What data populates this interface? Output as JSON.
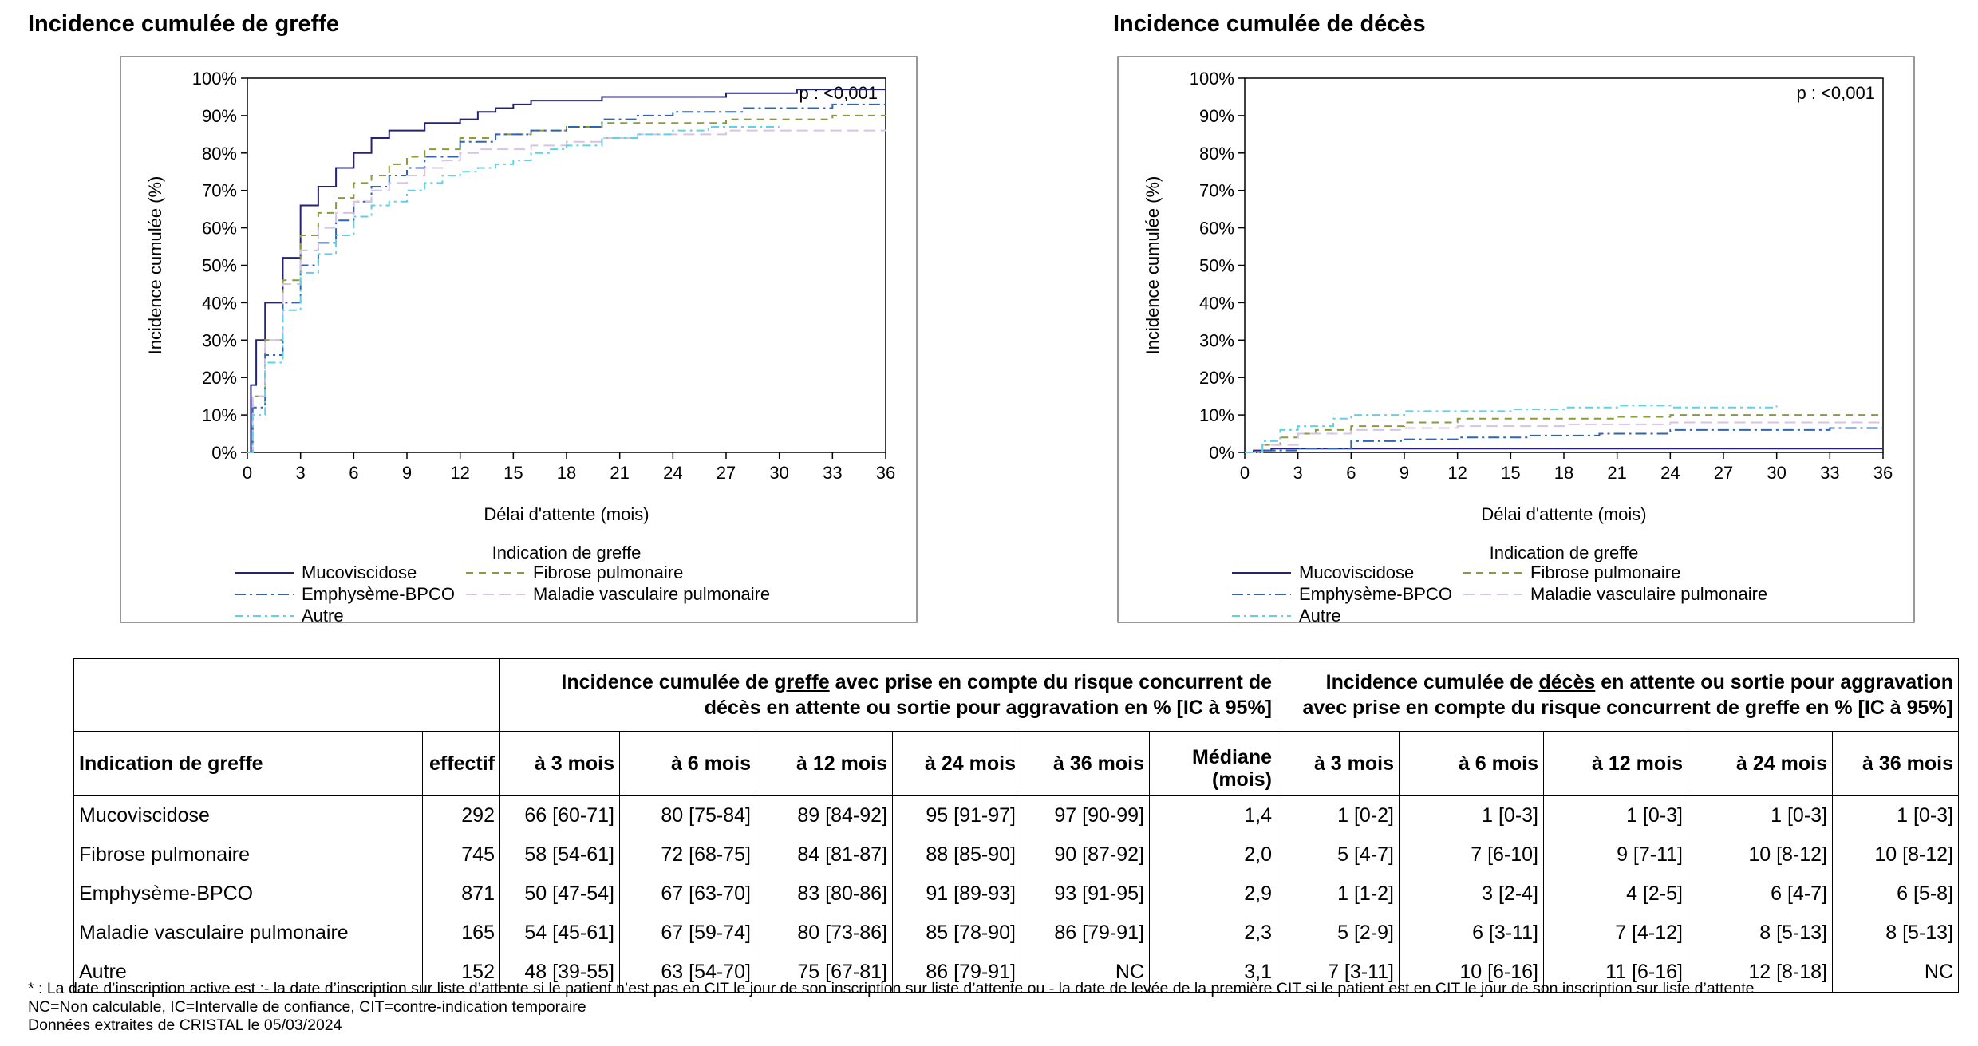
{
  "chart_data": [
    {
      "type": "line",
      "title": "Incidence cumulée de greffe",
      "xlabel": "Délai d'attente (mois)",
      "ylabel": "Incidence cumulée (%)",
      "xlim": [
        0,
        36
      ],
      "ylim": [
        0,
        100
      ],
      "x_ticks": [
        "0",
        "3",
        "6",
        "9",
        "12",
        "15",
        "18",
        "21",
        "24",
        "27",
        "30",
        "33",
        "36"
      ],
      "y_ticks": [
        "0%",
        "10%",
        "20%",
        "30%",
        "40%",
        "50%",
        "60%",
        "70%",
        "80%",
        "90%",
        "100%"
      ],
      "annotation": "p : <0,001",
      "legend_title": "Indication de greffe",
      "grid": false,
      "series": [
        {
          "name": "Mucoviscidose",
          "color": "#23237a",
          "dash": "",
          "points": [
            [
              0,
              0
            ],
            [
              0.2,
              18
            ],
            [
              0.5,
              30
            ],
            [
              1,
              40
            ],
            [
              2,
              52
            ],
            [
              3,
              66
            ],
            [
              4,
              71
            ],
            [
              5,
              76
            ],
            [
              6,
              80
            ],
            [
              7,
              84
            ],
            [
              8,
              86
            ],
            [
              10,
              88
            ],
            [
              12,
              89
            ],
            [
              13,
              91
            ],
            [
              14,
              92
            ],
            [
              15,
              93
            ],
            [
              16,
              94
            ],
            [
              18,
              94
            ],
            [
              20,
              95
            ],
            [
              22,
              95
            ],
            [
              24,
              95
            ],
            [
              26,
              95
            ],
            [
              27,
              96
            ],
            [
              30,
              96
            ],
            [
              31,
              97
            ],
            [
              36,
              97
            ]
          ]
        },
        {
          "name": "Fibrose pulmonaire",
          "color": "#8c9a3c",
          "dash": "9,7",
          "points": [
            [
              0,
              0
            ],
            [
              0.3,
              15
            ],
            [
              1,
              30
            ],
            [
              2,
              46
            ],
            [
              3,
              58
            ],
            [
              4,
              64
            ],
            [
              5,
              68
            ],
            [
              6,
              72
            ],
            [
              7,
              74
            ],
            [
              8,
              77
            ],
            [
              9,
              79
            ],
            [
              10,
              81
            ],
            [
              12,
              84
            ],
            [
              14,
              85
            ],
            [
              16,
              86
            ],
            [
              18,
              87
            ],
            [
              20,
              88
            ],
            [
              22,
              88
            ],
            [
              24,
              88
            ],
            [
              27,
              89
            ],
            [
              30,
              89
            ],
            [
              33,
              90
            ],
            [
              36,
              90
            ]
          ]
        },
        {
          "name": "Emphysème-BPCO",
          "color": "#3264b4",
          "dash": "14,5,3,5",
          "points": [
            [
              0,
              0
            ],
            [
              0.3,
              12
            ],
            [
              1,
              26
            ],
            [
              2,
              40
            ],
            [
              3,
              50
            ],
            [
              4,
              56
            ],
            [
              5,
              62
            ],
            [
              6,
              67
            ],
            [
              7,
              71
            ],
            [
              8,
              74
            ],
            [
              9,
              76
            ],
            [
              10,
              79
            ],
            [
              12,
              83
            ],
            [
              14,
              85
            ],
            [
              16,
              86
            ],
            [
              18,
              87
            ],
            [
              20,
              89
            ],
            [
              22,
              90
            ],
            [
              24,
              91
            ],
            [
              26,
              91
            ],
            [
              28,
              92
            ],
            [
              30,
              92
            ],
            [
              33,
              93
            ],
            [
              36,
              93
            ]
          ]
        },
        {
          "name": "Maladie vasculaire pulmonaire",
          "color": "#d7c3e6",
          "dash": "14,7",
          "points": [
            [
              0,
              0
            ],
            [
              0.3,
              15
            ],
            [
              1,
              30
            ],
            [
              2,
              45
            ],
            [
              3,
              54
            ],
            [
              4,
              60
            ],
            [
              5,
              64
            ],
            [
              6,
              67
            ],
            [
              7,
              70
            ],
            [
              8,
              72
            ],
            [
              9,
              74
            ],
            [
              10,
              76
            ],
            [
              11,
              78
            ],
            [
              12,
              80
            ],
            [
              13,
              81
            ],
            [
              15,
              81
            ],
            [
              16,
              82
            ],
            [
              18,
              83
            ],
            [
              20,
              84
            ],
            [
              22,
              85
            ],
            [
              24,
              85
            ],
            [
              27,
              86
            ],
            [
              36,
              86
            ]
          ]
        },
        {
          "name": "Autre",
          "color": "#5fd2e6",
          "dash": "10,5,3,5",
          "points": [
            [
              0,
              0
            ],
            [
              0.3,
              10
            ],
            [
              1,
              24
            ],
            [
              2,
              38
            ],
            [
              3,
              48
            ],
            [
              4,
              53
            ],
            [
              5,
              58
            ],
            [
              6,
              63
            ],
            [
              7,
              66
            ],
            [
              8,
              67
            ],
            [
              9,
              70
            ],
            [
              10,
              72
            ],
            [
              11,
              74
            ],
            [
              12,
              75
            ],
            [
              13,
              76
            ],
            [
              14,
              77
            ],
            [
              15,
              78
            ],
            [
              16,
              80
            ],
            [
              17,
              81
            ],
            [
              18,
              82
            ],
            [
              20,
              84
            ],
            [
              22,
              85
            ],
            [
              24,
              86
            ],
            [
              26,
              87
            ],
            [
              28,
              87
            ],
            [
              30,
              87
            ]
          ]
        }
      ]
    },
    {
      "type": "line",
      "title": "Incidence cumulée de décès",
      "xlabel": "Délai d'attente (mois)",
      "ylabel": "Incidence cumulée (%)",
      "xlim": [
        0,
        36
      ],
      "ylim": [
        0,
        100
      ],
      "x_ticks": [
        "0",
        "3",
        "6",
        "9",
        "12",
        "15",
        "18",
        "21",
        "24",
        "27",
        "30",
        "33",
        "36"
      ],
      "y_ticks": [
        "0%",
        "10%",
        "20%",
        "30%",
        "40%",
        "50%",
        "60%",
        "70%",
        "80%",
        "90%",
        "100%"
      ],
      "annotation": "p : <0,001",
      "legend_title": "Indication de greffe",
      "grid": false,
      "series": [
        {
          "name": "Mucoviscidose",
          "color": "#23237a",
          "dash": "",
          "points": [
            [
              0,
              0
            ],
            [
              0.5,
              0.5
            ],
            [
              1.5,
              1
            ],
            [
              36,
              1
            ]
          ]
        },
        {
          "name": "Fibrose pulmonaire",
          "color": "#8c9a3c",
          "dash": "9,7",
          "points": [
            [
              0,
              0
            ],
            [
              1,
              2
            ],
            [
              2,
              4
            ],
            [
              3,
              5
            ],
            [
              4,
              6
            ],
            [
              6,
              7
            ],
            [
              9,
              8
            ],
            [
              12,
              9
            ],
            [
              18,
              9
            ],
            [
              21,
              9.5
            ],
            [
              24,
              10
            ],
            [
              36,
              10
            ]
          ]
        },
        {
          "name": "Emphysème-BPCO",
          "color": "#3264b4",
          "dash": "14,5,3,5",
          "points": [
            [
              0,
              0
            ],
            [
              1,
              0.5
            ],
            [
              3,
              1
            ],
            [
              6,
              3
            ],
            [
              9,
              3.5
            ],
            [
              12,
              4
            ],
            [
              16,
              4.5
            ],
            [
              20,
              5
            ],
            [
              24,
              6
            ],
            [
              30,
              6
            ],
            [
              33,
              6.5
            ],
            [
              36,
              6.5
            ]
          ]
        },
        {
          "name": "Maladie vasculaire pulmonaire",
          "color": "#d7c3e6",
          "dash": "14,7",
          "points": [
            [
              0,
              0
            ],
            [
              1,
              2
            ],
            [
              3,
              5
            ],
            [
              6,
              6
            ],
            [
              9,
              6.5
            ],
            [
              12,
              7
            ],
            [
              18,
              7.5
            ],
            [
              24,
              8
            ],
            [
              36,
              8
            ]
          ]
        },
        {
          "name": "Autre",
          "color": "#5fd2e6",
          "dash": "10,5,3,5",
          "points": [
            [
              0,
              0
            ],
            [
              1,
              3
            ],
            [
              2,
              6
            ],
            [
              3,
              7
            ],
            [
              5,
              9
            ],
            [
              6,
              10
            ],
            [
              9,
              11
            ],
            [
              12,
              11
            ],
            [
              15,
              11.5
            ],
            [
              18,
              12
            ],
            [
              21,
              12.5
            ],
            [
              24,
              12
            ],
            [
              30,
              12.5
            ]
          ]
        }
      ]
    }
  ],
  "table": {
    "group1_header": {
      "pre": "Incidence cumulée de ",
      "underlined": "greffe",
      "post": " avec prise en compte du risque concurrent de",
      "line2": "décès en attente ou sortie pour aggravation en % [IC à 95%]"
    },
    "group2_header": {
      "pre": "Incidence cumulée de ",
      "underlined": "décès",
      "post": " en attente ou sortie pour aggravation",
      "line2": "avec prise en compte du risque concurrent de greffe en % [IC à 95%]"
    },
    "columns": [
      "Indication de greffe",
      "effectif",
      "à 3 mois",
      "à 6 mois",
      "à 12 mois",
      "à 24 mois",
      "à 36 mois",
      "Médiane",
      "(mois)",
      "à 3 mois",
      "à 6 mois",
      "à 12 mois",
      "à 24 mois",
      "à 36 mois"
    ],
    "rows": [
      [
        "Mucoviscidose",
        "292",
        "66 [60-71]",
        "80 [75-84]",
        "89 [84-92]",
        "95 [91-97]",
        "97 [90-99]",
        "1,4",
        "1 [0-2]",
        "1 [0-3]",
        "1 [0-3]",
        "1 [0-3]",
        "1 [0-3]"
      ],
      [
        "Fibrose pulmonaire",
        "745",
        "58 [54-61]",
        "72 [68-75]",
        "84 [81-87]",
        "88 [85-90]",
        "90 [87-92]",
        "2,0",
        "5 [4-7]",
        "7 [6-10]",
        "9 [7-11]",
        "10 [8-12]",
        "10 [8-12]"
      ],
      [
        "Emphysème-BPCO",
        "871",
        "50 [47-54]",
        "67 [63-70]",
        "83 [80-86]",
        "91 [89-93]",
        "93 [91-95]",
        "2,9",
        "1 [1-2]",
        "3 [2-4]",
        "4 [2-5]",
        "6 [4-7]",
        "6 [5-8]"
      ],
      [
        "Maladie vasculaire pulmonaire",
        "165",
        "54 [45-61]",
        "67 [59-74]",
        "80 [73-86]",
        "85 [78-90]",
        "86 [79-91]",
        "2,3",
        "5 [2-9]",
        "6 [3-11]",
        "7 [4-12]",
        "8 [5-13]",
        "8 [5-13]"
      ],
      [
        "Autre",
        "152",
        "48 [39-55]",
        "63 [54-70]",
        "75 [67-81]",
        "86 [79-91]",
        "NC",
        "3,1",
        "7 [3-11]",
        "10 [6-16]",
        "11 [6-16]",
        "12 [8-18]",
        "NC"
      ]
    ]
  },
  "footnotes": [
    "*  : La date d’inscription active est :- la date d’inscription sur liste d’attente si le patient n’est pas en CIT le jour de son inscription sur liste d’attente ou - la date de levée de la première CIT si le patient est en CIT le jour de son inscription sur liste d’attente",
    "NC=Non calculable, IC=Intervalle de confiance, CIT=contre-indication temporaire",
    "Données extraites de CRISTAL le 05/03/2024"
  ]
}
